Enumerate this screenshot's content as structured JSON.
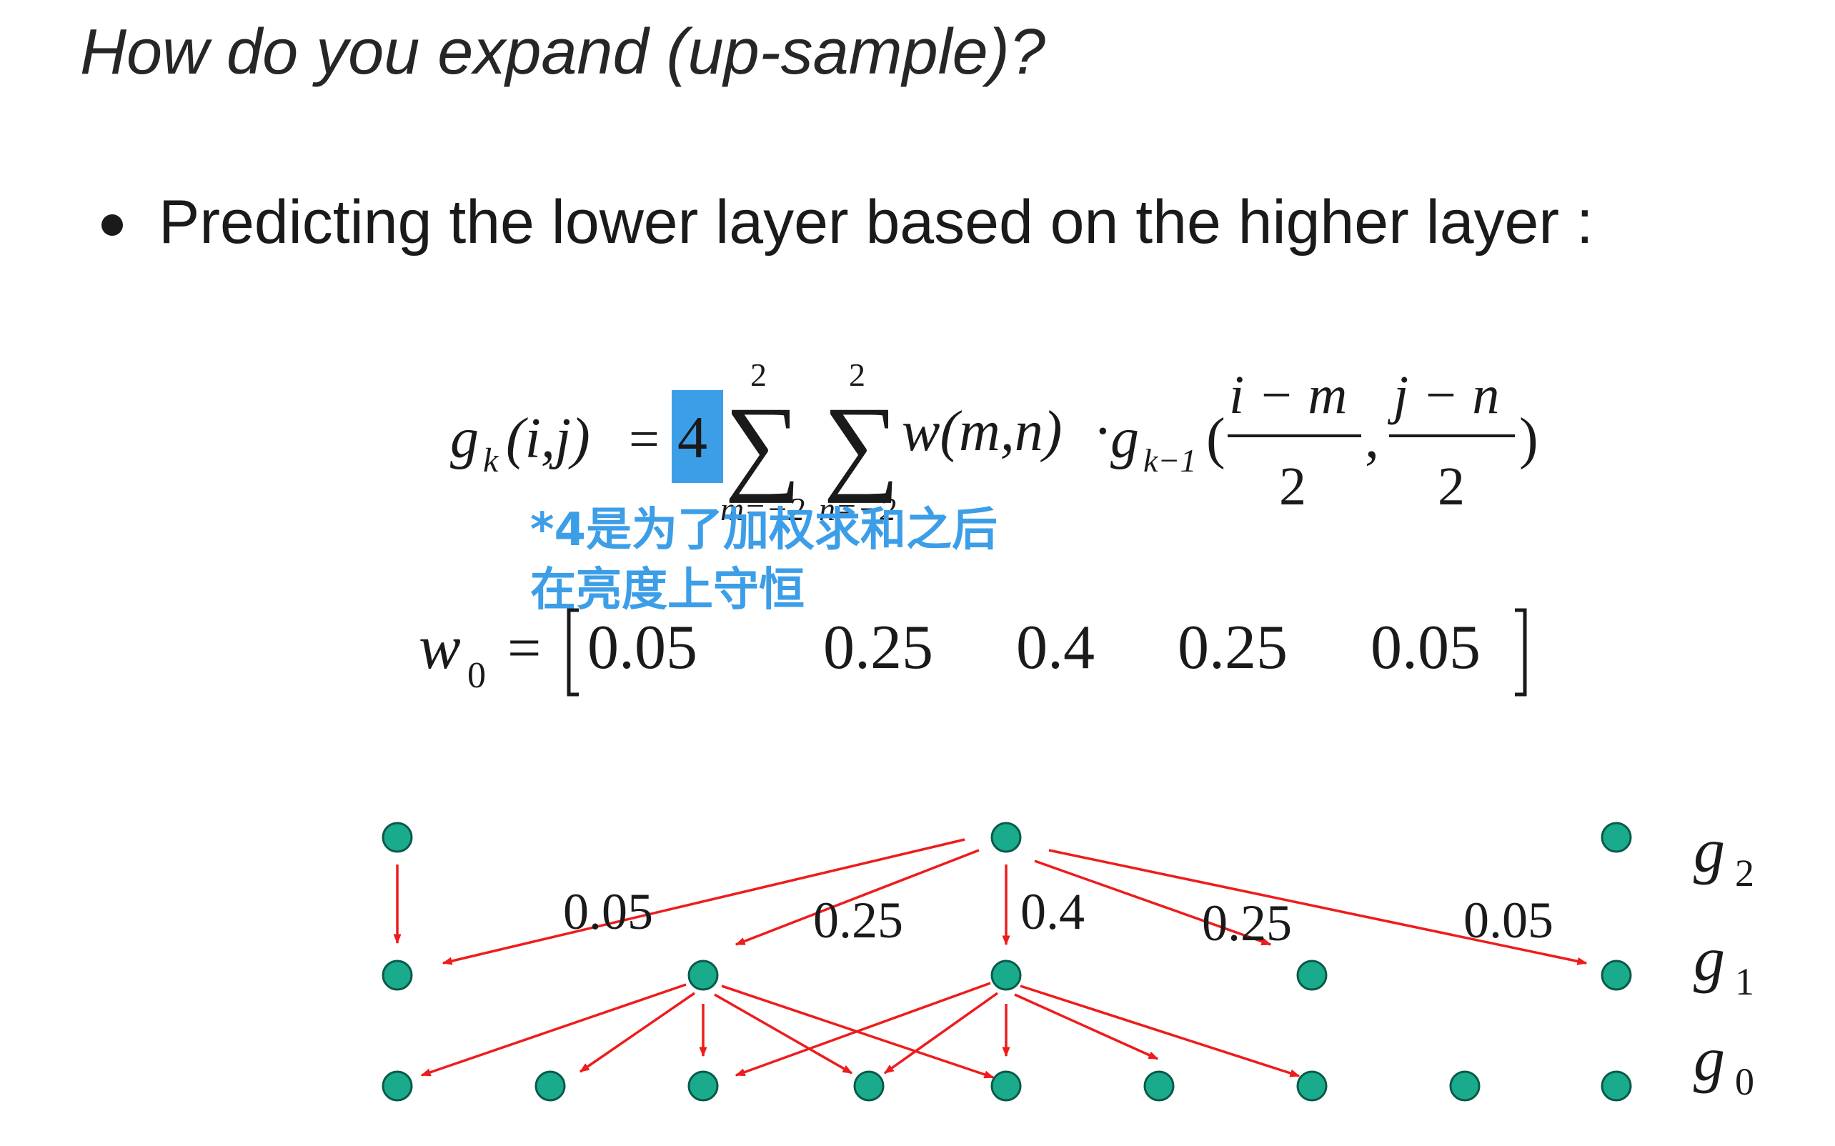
{
  "slide": {
    "title": "How do you expand (up-sample)?",
    "bullet": "Predicting the lower layer based on the higher layer :",
    "annotation_line1": "*4是为了加权求和之后",
    "annotation_line2": "在亮度上守恒"
  },
  "formula": {
    "g": "g",
    "k": "k",
    "args": "(i,j)",
    "eq": "=",
    "factor": "4",
    "sum_upper": "2",
    "sum_lower_m": "m=−2",
    "sum_lower_n": "n=−2",
    "sum_symbol": "∑",
    "weight": "w(m,n)",
    "dot": "·",
    "k_minus_1": "k−1",
    "open_paren": "(",
    "num1": "i − m",
    "num2": "j − n",
    "den": "2",
    "comma": ",",
    "close_paren": ")"
  },
  "weights": {
    "w": "w",
    "sub": "0",
    "eq": "=",
    "values": [
      "0.05",
      "0.25",
      "0.4",
      "0.25",
      "0.05"
    ]
  },
  "diagram": {
    "edge_labels": [
      "0.05",
      "0.25",
      "0.4",
      "0.25",
      "0.05"
    ],
    "layers": [
      {
        "name": "g",
        "sub": "2"
      },
      {
        "name": "g",
        "sub": "1"
      },
      {
        "name": "g",
        "sub": "0"
      }
    ],
    "colors": {
      "node_fill": "#1aaa8c",
      "node_stroke": "#0a5a48",
      "arrow": "#ee1c1c",
      "highlight": "#3d9ee8"
    }
  }
}
